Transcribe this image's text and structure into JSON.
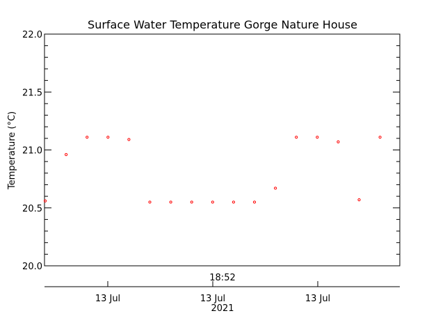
{
  "chart_data": {
    "type": "scatter",
    "title": "Surface Water Temperature Gorge Nature House",
    "ylabel": "Temperature (°C)",
    "ylim": [
      20.0,
      22.0
    ],
    "yticks": [
      "20.0",
      "20.5",
      "21.0",
      "21.5",
      "22.0"
    ],
    "xlabels": {
      "time_label": "18:52",
      "date_ticks": [
        "13 Jul",
        "13 Jul",
        "13 Jul"
      ],
      "year_label": "2021"
    },
    "marker_color": "#ff0000",
    "series": [
      {
        "values": [
          20.56,
          20.96,
          21.11,
          21.11,
          21.09,
          20.55,
          20.55,
          20.55,
          20.55,
          20.55,
          20.55,
          20.67,
          21.11,
          21.11,
          21.07,
          20.57,
          21.11
        ]
      }
    ]
  }
}
